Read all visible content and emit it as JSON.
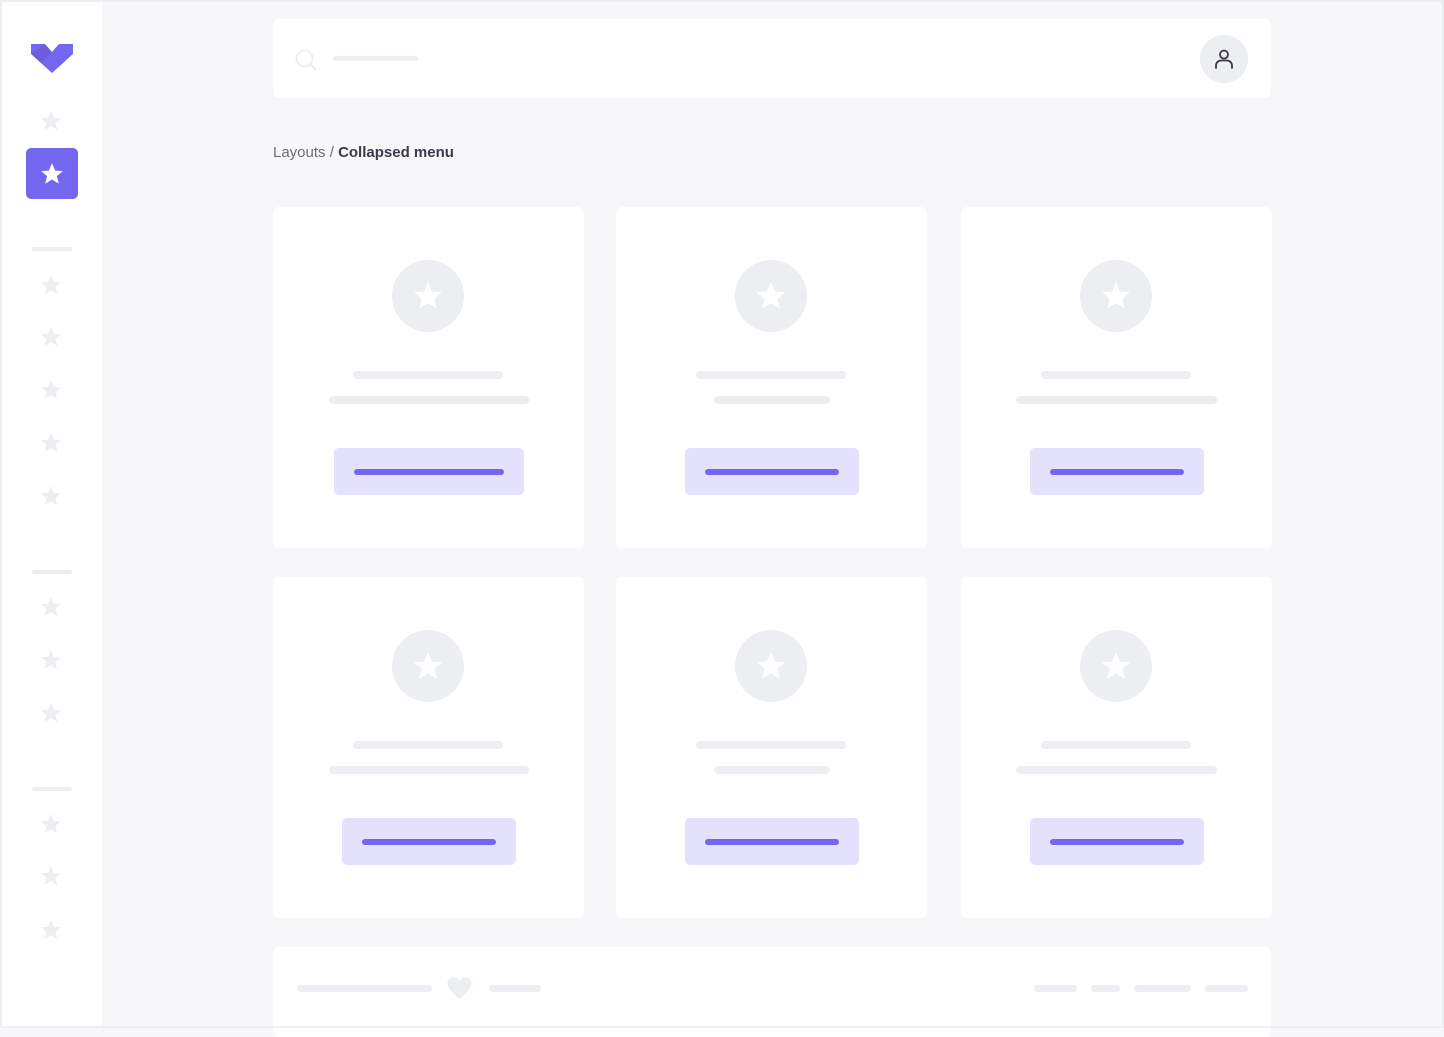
{
  "sidebar": {
    "logo_icon": "chevron-heart-logo",
    "active_item_icon": "star-icon",
    "groups": [
      1,
      1,
      5,
      3,
      3
    ],
    "accent": "#7367f0"
  },
  "topbar": {
    "search_icon": "search-icon",
    "user_icon": "user-icon"
  },
  "breadcrumb": {
    "parent": "Layouts",
    "separator": "/",
    "current": "Collapsed menu"
  },
  "cards": [
    {
      "icon": "star-icon"
    },
    {
      "icon": "star-icon"
    },
    {
      "icon": "star-icon"
    },
    {
      "icon": "star-icon"
    },
    {
      "icon": "star-icon"
    },
    {
      "icon": "star-icon"
    }
  ],
  "footer": {
    "icon": "heart-icon"
  },
  "colors": {
    "accent": "#7367f0",
    "accent_light": "#e4e1fd",
    "placeholder": "#eceef2",
    "background": "#f7f7f9"
  }
}
